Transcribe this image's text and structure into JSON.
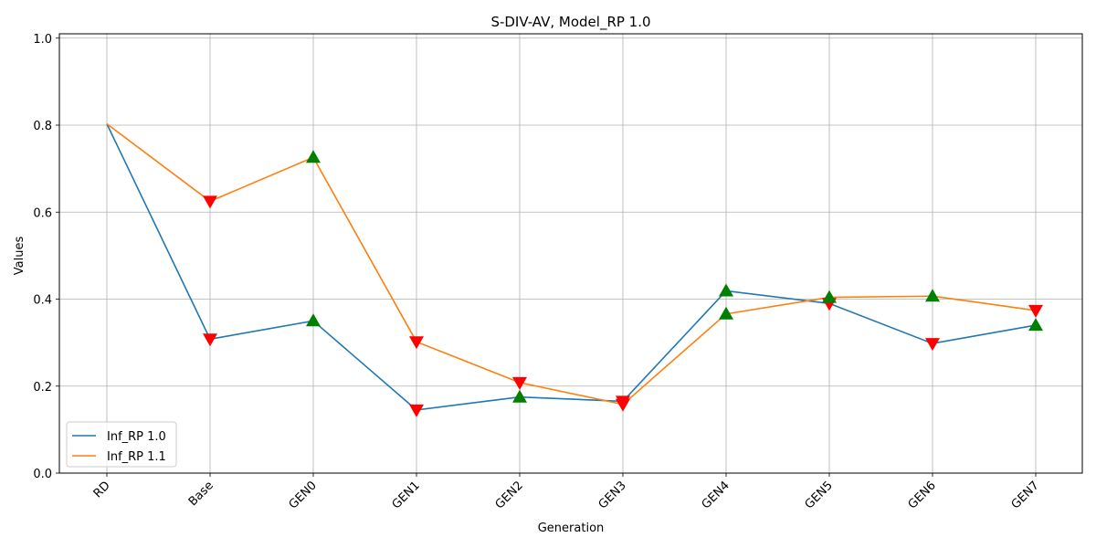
{
  "chart_data": {
    "type": "line",
    "title": "S-DIV-AV, Model_RP 1.0",
    "xlabel": "Generation",
    "ylabel": "Values",
    "categories": [
      "RD",
      "Base",
      "GEN0",
      "GEN1",
      "GEN2",
      "GEN3",
      "GEN4",
      "GEN5",
      "GEN6",
      "GEN7"
    ],
    "ylim": [
      0,
      1.0
    ],
    "yticks": [
      "0.0",
      "0.2",
      "0.4",
      "0.6",
      "0.8",
      "1.0"
    ],
    "grid": true,
    "legend_position": "lower-left",
    "series": [
      {
        "name": "Inf_RP 1.0",
        "color": "#1f77b4",
        "values": [
          0.803,
          0.308,
          0.35,
          0.145,
          0.175,
          0.165,
          0.419,
          0.39,
          0.298,
          0.34
        ],
        "markers": [
          null,
          "down",
          "up",
          "down",
          "up",
          "down",
          "up",
          "down",
          "down",
          "up"
        ]
      },
      {
        "name": "Inf_RP 1.1",
        "color": "#ff7f0e",
        "values": [
          0.803,
          0.625,
          0.726,
          0.302,
          0.208,
          0.158,
          0.366,
          0.404,
          0.407,
          0.374
        ],
        "markers": [
          null,
          "down",
          "up",
          "down",
          "down",
          "down",
          "up",
          "up",
          "up",
          "down"
        ]
      }
    ],
    "marker_colors": {
      "up": "#008000",
      "down": "#ff0000"
    }
  }
}
